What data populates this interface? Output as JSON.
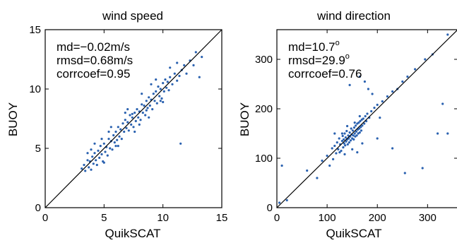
{
  "chart_data": [
    {
      "type": "scatter",
      "title": "wind speed",
      "xlabel": "QuikSCAT",
      "ylabel": "BUOY",
      "xlim": [
        0,
        15
      ],
      "ylim": [
        0,
        15
      ],
      "xticks": [
        "0",
        "5",
        "10",
        "15"
      ],
      "yticks": [
        "0",
        "5",
        "10",
        "15"
      ],
      "grid": false,
      "reference_line": "y = x",
      "point_color": "#2b62b0",
      "stats": [
        "md=−0.02m/s",
        "rmsd=0.68m/s",
        "corrcoef=0.95"
      ],
      "points": [
        [
          3.1,
          3.3
        ],
        [
          3.3,
          3.6
        ],
        [
          3.4,
          3.1
        ],
        [
          3.6,
          4.0
        ],
        [
          3.7,
          3.4
        ],
        [
          3.8,
          3.9
        ],
        [
          3.9,
          3.2
        ],
        [
          4.0,
          4.3
        ],
        [
          4.1,
          3.7
        ],
        [
          4.2,
          4.6
        ],
        [
          4.3,
          4.0
        ],
        [
          4.4,
          3.6
        ],
        [
          4.5,
          4.8
        ],
        [
          4.6,
          4.2
        ],
        [
          4.7,
          5.2
        ],
        [
          4.8,
          4.5
        ],
        [
          4.9,
          3.9
        ],
        [
          5.0,
          5.4
        ],
        [
          5.1,
          4.7
        ],
        [
          5.2,
          5.1
        ],
        [
          5.3,
          4.4
        ],
        [
          5.4,
          5.8
        ],
        [
          5.5,
          5.0
        ],
        [
          5.6,
          5.6
        ],
        [
          5.7,
          4.9
        ],
        [
          5.8,
          6.1
        ],
        [
          5.9,
          5.5
        ],
        [
          6.0,
          6.4
        ],
        [
          6.1,
          5.7
        ],
        [
          6.2,
          6.8
        ],
        [
          6.3,
          6.0
        ],
        [
          6.4,
          6.6
        ],
        [
          6.5,
          5.8
        ],
        [
          6.6,
          7.1
        ],
        [
          6.7,
          6.4
        ],
        [
          6.8,
          7.4
        ],
        [
          6.9,
          6.7
        ],
        [
          7.0,
          7.2
        ],
        [
          7.1,
          6.5
        ],
        [
          7.2,
          7.8
        ],
        [
          7.3,
          7.0
        ],
        [
          7.4,
          7.6
        ],
        [
          7.5,
          6.8
        ],
        [
          7.6,
          8.0
        ],
        [
          7.7,
          7.3
        ],
        [
          7.8,
          8.3
        ],
        [
          7.9,
          7.6
        ],
        [
          8.0,
          8.1
        ],
        [
          8.1,
          7.4
        ],
        [
          8.2,
          8.7
        ],
        [
          8.3,
          8.0
        ],
        [
          8.4,
          8.6
        ],
        [
          8.5,
          7.8
        ],
        [
          8.6,
          9.0
        ],
        [
          8.7,
          8.4
        ],
        [
          8.8,
          9.3
        ],
        [
          8.9,
          8.6
        ],
        [
          9.0,
          9.1
        ],
        [
          9.1,
          8.3
        ],
        [
          9.2,
          9.6
        ],
        [
          9.3,
          9.0
        ],
        [
          9.4,
          9.8
        ],
        [
          9.5,
          8.8
        ],
        [
          9.6,
          10.2
        ],
        [
          9.7,
          9.4
        ],
        [
          9.8,
          10.0
        ],
        [
          9.9,
          9.2
        ],
        [
          10.0,
          10.5
        ],
        [
          10.1,
          9.8
        ],
        [
          10.2,
          10.8
        ],
        [
          10.3,
          10.1
        ],
        [
          10.4,
          10.6
        ],
        [
          10.5,
          9.9
        ],
        [
          10.6,
          11.0
        ],
        [
          10.8,
          10.4
        ],
        [
          11.0,
          11.3
        ],
        [
          11.2,
          10.7
        ],
        [
          11.4,
          11.1
        ],
        [
          11.6,
          11.6
        ],
        [
          11.8,
          12.0
        ],
        [
          12.0,
          11.3
        ],
        [
          12.3,
          12.4
        ],
        [
          12.6,
          12.0
        ],
        [
          12.8,
          13.1
        ],
        [
          13.1,
          11.0
        ],
        [
          13.3,
          12.7
        ],
        [
          11.5,
          5.4
        ],
        [
          3.6,
          4.6
        ],
        [
          4.2,
          5.4
        ],
        [
          5.0,
          3.8
        ],
        [
          5.6,
          6.8
        ],
        [
          6.2,
          5.2
        ],
        [
          7.0,
          8.3
        ],
        [
          7.6,
          6.4
        ],
        [
          8.2,
          9.6
        ],
        [
          8.8,
          7.6
        ],
        [
          9.4,
          10.8
        ],
        [
          10.0,
          8.9
        ],
        [
          6.8,
          8.0
        ],
        [
          5.4,
          6.4
        ],
        [
          8.0,
          7.0
        ],
        [
          9.0,
          10.4
        ],
        [
          4.8,
          5.8
        ],
        [
          10.6,
          11.8
        ],
        [
          11.2,
          12.2
        ],
        [
          7.4,
          7.9
        ],
        [
          8.6,
          8.2
        ],
        [
          6.0,
          5.2
        ],
        [
          3.9,
          4.9
        ],
        [
          9.8,
          9.0
        ]
      ]
    },
    {
      "type": "scatter",
      "title": "wind direction",
      "xlabel": "QuikSCAT",
      "ylabel": "BUOY",
      "xlim": [
        0,
        360
      ],
      "ylim": [
        0,
        360
      ],
      "xticks": [
        "0",
        "100",
        "200",
        "300"
      ],
      "yticks": [
        "0",
        "100",
        "200",
        "300"
      ],
      "grid": false,
      "reference_line": "y = x",
      "point_color": "#2b62b0",
      "stats": [
        {
          "text": "md=10.7",
          "sup": "o"
        },
        {
          "text": "rmsd=29.9",
          "sup": "o"
        },
        {
          "text": "corrcoef=0.76",
          "sup": ""
        }
      ],
      "points": [
        [
          5,
          10
        ],
        [
          10,
          85
        ],
        [
          20,
          15
        ],
        [
          60,
          75
        ],
        [
          80,
          60
        ],
        [
          90,
          95
        ],
        [
          100,
          105
        ],
        [
          105,
          85
        ],
        [
          110,
          120
        ],
        [
          112,
          98
        ],
        [
          115,
          125
        ],
        [
          118,
          110
        ],
        [
          120,
          132
        ],
        [
          122,
          118
        ],
        [
          124,
          140
        ],
        [
          126,
          128
        ],
        [
          128,
          115
        ],
        [
          130,
          135
        ],
        [
          131,
          145
        ],
        [
          132,
          122
        ],
        [
          133,
          138
        ],
        [
          134,
          130
        ],
        [
          135,
          150
        ],
        [
          136,
          126
        ],
        [
          137,
          142
        ],
        [
          138,
          134
        ],
        [
          139,
          155
        ],
        [
          140,
          138
        ],
        [
          141,
          128
        ],
        [
          142,
          146
        ],
        [
          143,
          140
        ],
        [
          144,
          132
        ],
        [
          145,
          152
        ],
        [
          146,
          144
        ],
        [
          147,
          136
        ],
        [
          148,
          160
        ],
        [
          149,
          148
        ],
        [
          150,
          140
        ],
        [
          151,
          156
        ],
        [
          152,
          146
        ],
        [
          153,
          138
        ],
        [
          154,
          162
        ],
        [
          155,
          150
        ],
        [
          156,
          144
        ],
        [
          157,
          166
        ],
        [
          158,
          154
        ],
        [
          159,
          146
        ],
        [
          160,
          170
        ],
        [
          161,
          158
        ],
        [
          162,
          150
        ],
        [
          163,
          172
        ],
        [
          164,
          160
        ],
        [
          165,
          152
        ],
        [
          166,
          175
        ],
        [
          167,
          163
        ],
        [
          168,
          156
        ],
        [
          169,
          178
        ],
        [
          170,
          166
        ],
        [
          172,
          180
        ],
        [
          174,
          170
        ],
        [
          176,
          185
        ],
        [
          178,
          175
        ],
        [
          180,
          190
        ],
        [
          184,
          182
        ],
        [
          188,
          195
        ],
        [
          194,
          202
        ],
        [
          200,
          208
        ],
        [
          210,
          215
        ],
        [
          220,
          225
        ],
        [
          230,
          235
        ],
        [
          240,
          240
        ],
        [
          250,
          255
        ],
        [
          260,
          265
        ],
        [
          275,
          280
        ],
        [
          295,
          300
        ],
        [
          310,
          310
        ],
        [
          340,
          350
        ],
        [
          145,
          248
        ],
        [
          165,
          265
        ],
        [
          175,
          255
        ],
        [
          182,
          240
        ],
        [
          190,
          230
        ],
        [
          330,
          210
        ],
        [
          320,
          150
        ],
        [
          340,
          150
        ],
        [
          290,
          80
        ],
        [
          230,
          120
        ],
        [
          115,
          150
        ],
        [
          160,
          112
        ],
        [
          200,
          140
        ],
        [
          135,
          108
        ],
        [
          150,
          118
        ],
        [
          170,
          130
        ],
        [
          125,
          112
        ],
        [
          155,
          172
        ],
        [
          165,
          185
        ],
        [
          140,
          165
        ],
        [
          130,
          150
        ],
        [
          205,
          182
        ],
        [
          255,
          70
        ]
      ]
    }
  ]
}
